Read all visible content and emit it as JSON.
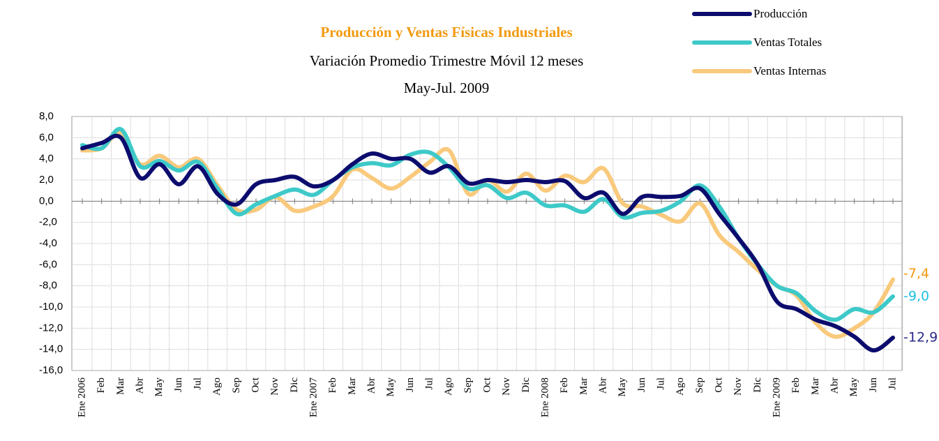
{
  "chart_data": {
    "type": "line",
    "title": "Producción y Ventas Físicas Industriales",
    "subtitle": "Variación Promedio Trimestre Móvil 12 meses",
    "period": "May-Jul. 2009",
    "categories": [
      "Ene 2006",
      "Feb",
      "Mar",
      "Abr",
      "May",
      "Jun",
      "Jul",
      "Ago",
      "Sep",
      "Oct",
      "Nov",
      "Dic",
      "Ene 2007",
      "Feb",
      "Mar",
      "Abr",
      "May",
      "Jun",
      "Jul",
      "Ago",
      "Sep",
      "Oct",
      "Nov",
      "Dic",
      "Ene 2008",
      "Feb",
      "Mar",
      "Abr",
      "May",
      "Jun",
      "Jul",
      "Ago",
      "Sep",
      "Oct",
      "Nov",
      "Dic",
      "Ene 2009",
      "Feb",
      "Mar",
      "Abr",
      "May",
      "Jun",
      "Jul"
    ],
    "series": [
      {
        "name": "Producción",
        "color": "#0c0c6e",
        "label_color": "#2a2a8a",
        "values": [
          5.0,
          5.5,
          6.0,
          2.2,
          3.5,
          1.6,
          3.3,
          0.7,
          -0.3,
          1.6,
          2.0,
          2.3,
          1.4,
          2.0,
          3.5,
          4.5,
          4.0,
          4.0,
          2.7,
          3.3,
          1.7,
          2.0,
          1.8,
          2.0,
          1.8,
          1.9,
          0.3,
          0.8,
          -1.2,
          0.4,
          0.4,
          0.5,
          1.2,
          -1.2,
          -3.5,
          -6.0,
          -9.5,
          -10.2,
          -11.2,
          -11.8,
          -12.8,
          -14.1,
          -12.9
        ],
        "value_labels": [
          null,
          null,
          null,
          null,
          null,
          null,
          null,
          null,
          null,
          null,
          null,
          null,
          null,
          null,
          null,
          null,
          null,
          null,
          null,
          null,
          null,
          null,
          null,
          null,
          null,
          null,
          null,
          null,
          null,
          null,
          null,
          null,
          null,
          null,
          null,
          null,
          null,
          null,
          null,
          null,
          null,
          null,
          "-12,9"
        ]
      },
      {
        "name": "Ventas Totales",
        "color": "#3ec9c9",
        "label_color": "#1ec0e0",
        "values": [
          5.3,
          5.0,
          6.8,
          3.3,
          3.8,
          2.9,
          3.7,
          1.2,
          -1.2,
          -0.3,
          0.5,
          1.1,
          0.6,
          2.0,
          3.2,
          3.6,
          3.4,
          4.4,
          4.6,
          3.2,
          1.2,
          1.5,
          0.3,
          0.8,
          -0.4,
          -0.4,
          -1.0,
          0.2,
          -1.5,
          -1.1,
          -0.9,
          0.0,
          1.5,
          -0.5,
          -3.5,
          -6.0,
          -8.0,
          -8.7,
          -10.4,
          -11.2,
          -10.2,
          -10.5,
          -9.0
        ],
        "value_labels": [
          null,
          null,
          null,
          null,
          null,
          null,
          null,
          null,
          null,
          null,
          null,
          null,
          null,
          null,
          null,
          null,
          null,
          null,
          null,
          null,
          null,
          null,
          null,
          null,
          null,
          null,
          null,
          null,
          null,
          null,
          null,
          null,
          null,
          null,
          null,
          null,
          null,
          null,
          null,
          null,
          null,
          null,
          "-9,0"
        ]
      },
      {
        "name": "Ventas Internas",
        "color": "#f9c97c",
        "label_color": "#f29a10",
        "values": [
          4.8,
          5.0,
          6.5,
          3.5,
          4.3,
          3.2,
          4.0,
          1.5,
          -0.8,
          -0.8,
          0.4,
          -0.9,
          -0.5,
          0.5,
          3.0,
          2.2,
          1.2,
          2.3,
          3.7,
          4.8,
          0.7,
          2.0,
          0.9,
          2.6,
          1.0,
          2.4,
          1.8,
          3.1,
          -0.2,
          -0.5,
          -1.3,
          -1.9,
          -0.2,
          -3.2,
          -4.8,
          -6.5,
          -8.0,
          -8.9,
          -11.5,
          -12.8,
          -12.0,
          -10.5,
          -7.4
        ],
        "value_labels": [
          null,
          null,
          null,
          null,
          null,
          null,
          null,
          null,
          null,
          null,
          null,
          null,
          null,
          null,
          null,
          null,
          null,
          null,
          null,
          null,
          null,
          null,
          null,
          null,
          null,
          null,
          null,
          null,
          null,
          null,
          null,
          null,
          null,
          null,
          null,
          null,
          null,
          null,
          null,
          null,
          null,
          null,
          "-7,4"
        ]
      }
    ],
    "ylim": [
      -16,
      8
    ],
    "yticks": [
      {
        "value": 8,
        "label": "8,0"
      },
      {
        "value": 6,
        "label": "6,0"
      },
      {
        "value": 4,
        "label": "4,0"
      },
      {
        "value": 2,
        "label": "2,0"
      },
      {
        "value": 0,
        "label": "0,0"
      },
      {
        "value": -2,
        "label": "-2,0"
      },
      {
        "value": -4,
        "label": "-4,0"
      },
      {
        "value": -6,
        "label": "-6,0"
      },
      {
        "value": -8,
        "label": "-8,0"
      },
      {
        "value": -10,
        "label": "-10,0"
      },
      {
        "value": -12,
        "label": "-12,0"
      },
      {
        "value": -14,
        "label": "-14,0"
      },
      {
        "value": -16,
        "label": "-16,0"
      }
    ],
    "grid": true,
    "legend": "top-right"
  }
}
